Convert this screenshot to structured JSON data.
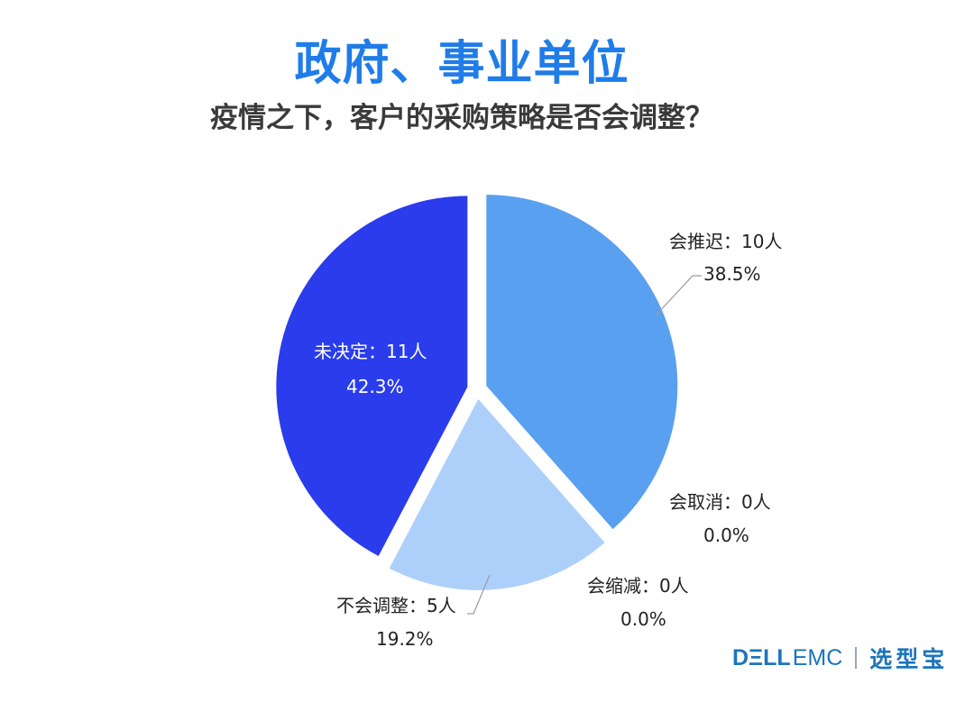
{
  "header": {
    "title": "政府、事业单位",
    "subtitle": "疫情之下，客户的采购策略是否会调整？"
  },
  "chart_data": {
    "type": "pie",
    "slices": [
      {
        "label": "会推迟：10人",
        "pct": "38.5%",
        "value": 38.5,
        "color": "#5aa0f0"
      },
      {
        "label": "会取消：0人",
        "pct": "0.0%",
        "value": 0.0,
        "color": "#5aa0f0"
      },
      {
        "label": "会缩减：0人",
        "pct": "0.0%",
        "value": 0.0,
        "color": "#acd0fa"
      },
      {
        "label": "不会调整：5人",
        "pct": "19.2%",
        "value": 19.2,
        "color": "#acd0fa"
      },
      {
        "label": "未决定：11人",
        "pct": "42.3%",
        "value": 42.3,
        "color": "#2a3cec"
      }
    ]
  },
  "brand": {
    "dell": "DΞLL",
    "emc": "EMC",
    "selector": "选型宝"
  }
}
